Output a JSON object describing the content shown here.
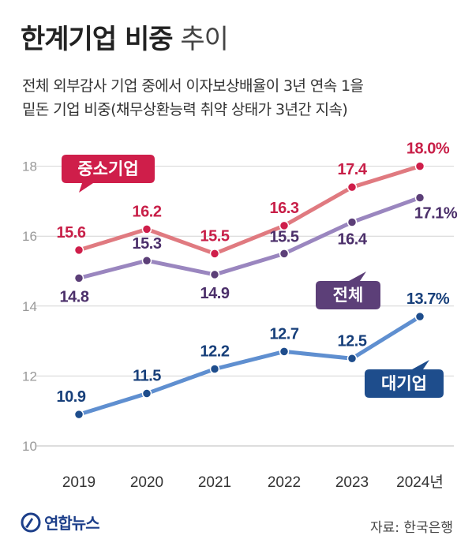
{
  "title": {
    "bold": "한계기업 비중",
    "light": "추이"
  },
  "subtitle": {
    "line1": "전체 외부감사 기업 중에서 이자보상배율이 3년 연속 1을",
    "line2": "밑돈 기업 비중(채무상환능력 취약 상태가 3년간 지속)"
  },
  "source": "자료: 한국은행",
  "logo": {
    "text": "연합뉴스",
    "icon": "yonhap-logo-icon"
  },
  "chart_data": {
    "type": "line",
    "x": [
      "2019",
      "2020",
      "2021",
      "2022",
      "2023",
      "2024년"
    ],
    "ylim": [
      10,
      18.5
    ],
    "yticks": [
      "10",
      "12",
      "14",
      "16",
      "18"
    ],
    "series": [
      {
        "name": "중소기업",
        "values": [
          15.6,
          16.2,
          15.5,
          16.3,
          17.4,
          18.0
        ],
        "labels": [
          "15.6",
          "16.2",
          "15.5",
          "16.3",
          "17.4",
          "18.0%"
        ],
        "color": "#e07a80",
        "dot": "#cf1e4a",
        "labelColor": "#c81f48"
      },
      {
        "name": "전체",
        "values": [
          14.8,
          15.3,
          14.9,
          15.5,
          16.4,
          17.1
        ],
        "labels": [
          "14.8",
          "15.3",
          "14.9",
          "15.5",
          "16.4",
          "17.1%"
        ],
        "color": "#9a86bf",
        "dot": "#5c3f78",
        "labelColor": "#4b2f6a"
      },
      {
        "name": "대기업",
        "values": [
          10.9,
          11.5,
          12.2,
          12.7,
          12.5,
          13.7
        ],
        "labels": [
          "10.9",
          "11.5",
          "12.2",
          "12.7",
          "12.5",
          "13.7%"
        ],
        "color": "#5f8fd0",
        "dot": "#1e4d8c",
        "labelColor": "#173f7a"
      }
    ],
    "grid": true
  }
}
